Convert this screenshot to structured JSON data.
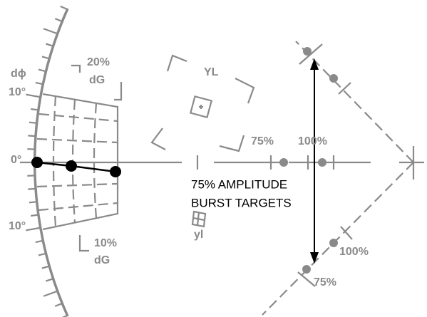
{
  "labels": {
    "dphi": "dϕ",
    "deg_top": "10°",
    "deg_zero": "0°",
    "deg_bottom": "10°",
    "dg_top_pct": "20%",
    "dg_top": "dG",
    "dg_bottom_pct": "10%",
    "dg_bottom": "dG",
    "yl_upper": "YL",
    "yl_lower": "yl",
    "axis_75": "75%",
    "axis_100": "100%",
    "burst_line1": "75% AMPLITUDE",
    "burst_line2": "BURST TARGETS",
    "diag_100": "100%",
    "diag_75": "75%"
  }
}
